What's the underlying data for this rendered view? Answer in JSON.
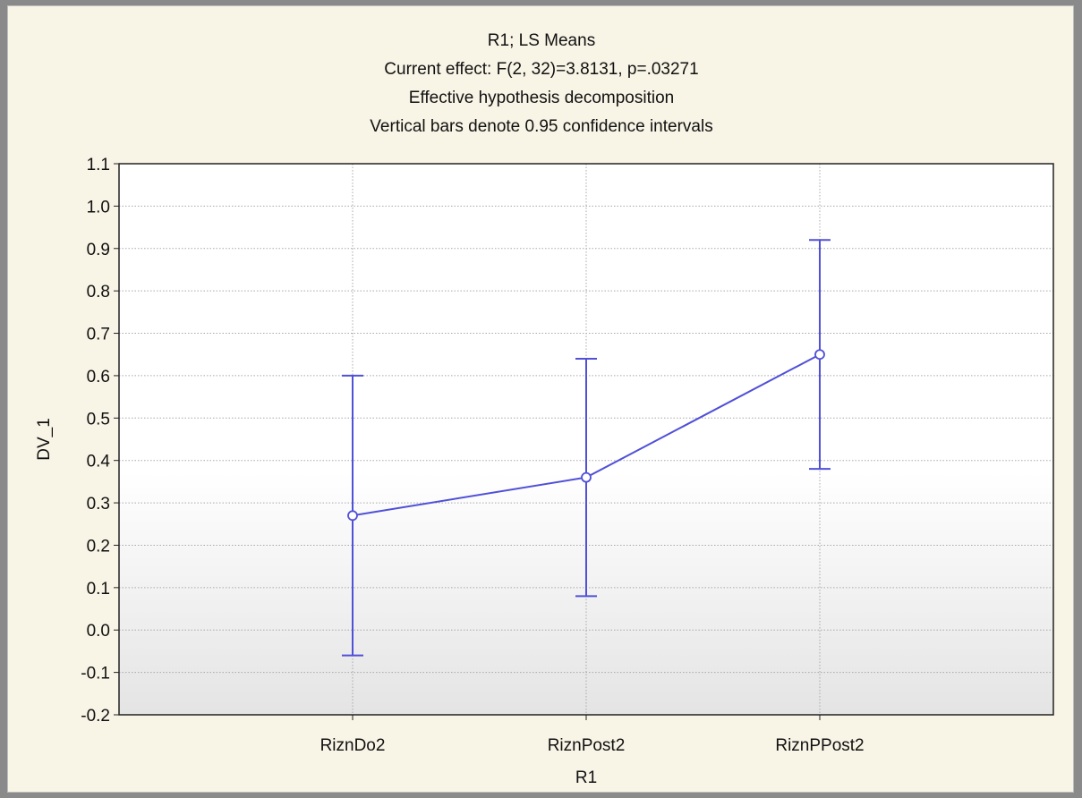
{
  "chart_data": {
    "type": "line",
    "title_lines": [
      "R1; LS Means",
      "Current effect: F(2, 32)=3.8131, p=.03271",
      "Effective hypothesis decomposition",
      "Vertical bars denote 0.95 confidence intervals"
    ],
    "xlabel": "R1",
    "ylabel": "DV_1",
    "categories": [
      "RiznDo2",
      "RiznPost2",
      "RiznPPost2"
    ],
    "series": [
      {
        "values": [
          0.27,
          0.36,
          0.65
        ],
        "ci_lower": [
          -0.06,
          0.08,
          0.38
        ],
        "ci_upper": [
          0.6,
          0.64,
          0.92
        ]
      }
    ],
    "ylim": [
      -0.2,
      1.1
    ],
    "yticks": [
      "1.1",
      "1.0",
      "0.9",
      "0.8",
      "0.7",
      "0.6",
      "0.5",
      "0.4",
      "0.3",
      "0.2",
      "0.1",
      "0.0",
      "-0.1",
      "-0.2"
    ],
    "ytick_values": [
      1.1,
      1.0,
      0.9,
      0.8,
      0.7,
      0.6,
      0.5,
      0.4,
      0.3,
      0.2,
      0.1,
      0.0,
      -0.1,
      -0.2
    ],
    "grid": true,
    "colors": {
      "series": "#5050d8",
      "grid": "#a8a8a8",
      "window": "#f8f4e6",
      "plot_gradient_end": "#e4e4e4"
    }
  }
}
